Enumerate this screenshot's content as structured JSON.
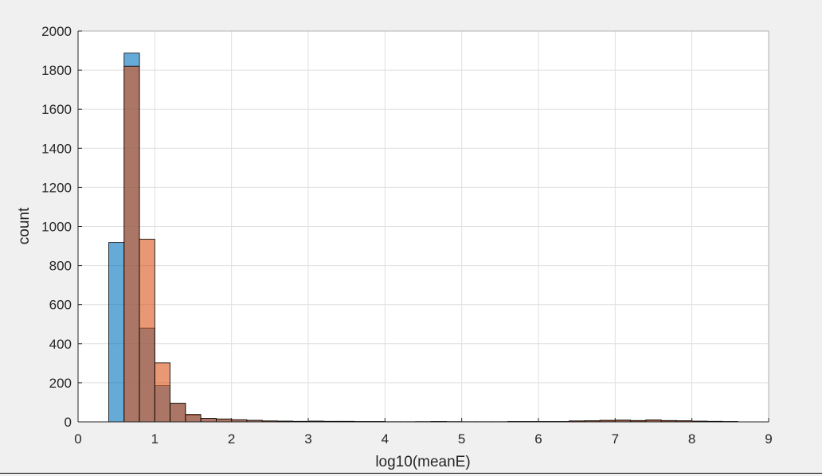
{
  "chart_data": {
    "type": "bar",
    "title": "",
    "xlabel": "log10(meanE)",
    "ylabel": "count",
    "xlim": [
      0,
      9
    ],
    "ylim": [
      0,
      2000
    ],
    "xticks": [
      "0",
      "1",
      "2",
      "3",
      "4",
      "5",
      "6",
      "7",
      "8",
      "9"
    ],
    "yticks": [
      "0",
      "200",
      "400",
      "600",
      "800",
      "1000",
      "1200",
      "1400",
      "1600",
      "1800",
      "2000"
    ],
    "grid": true,
    "bin_width": 0.2,
    "bin_edges": [
      0.4,
      0.6,
      0.8,
      1.0,
      1.2,
      1.4,
      1.6,
      1.8,
      2.0,
      2.2,
      2.4,
      2.6,
      2.8,
      3.0,
      3.2,
      3.4,
      3.6,
      3.8,
      4.0,
      4.2,
      4.4,
      4.6,
      4.8,
      5.0,
      5.2,
      5.4,
      5.6,
      5.8,
      6.0,
      6.2,
      6.4,
      6.6,
      6.8,
      7.0,
      7.2,
      7.4,
      7.6,
      7.8,
      8.0,
      8.2,
      8.4,
      8.6
    ],
    "series": [
      {
        "color": "#0072BD",
        "values": [
          918,
          1887,
          480,
          185,
          95,
          35,
          18,
          14,
          10,
          7,
          4,
          3,
          2,
          3,
          2,
          2,
          1,
          1,
          0,
          0,
          1,
          1,
          1,
          0,
          0,
          0,
          1,
          1,
          1,
          1,
          3,
          4,
          5,
          6,
          4,
          7,
          4,
          3,
          2,
          2,
          1
        ]
      },
      {
        "color": "#D95319",
        "values": [
          0,
          1820,
          935,
          302,
          95,
          38,
          18,
          15,
          11,
          8,
          5,
          4,
          3,
          4,
          3,
          3,
          2,
          2,
          1,
          1,
          1,
          2,
          1,
          1,
          1,
          1,
          2,
          2,
          2,
          2,
          5,
          6,
          8,
          9,
          7,
          10,
          7,
          6,
          4,
          3,
          2
        ]
      }
    ]
  }
}
